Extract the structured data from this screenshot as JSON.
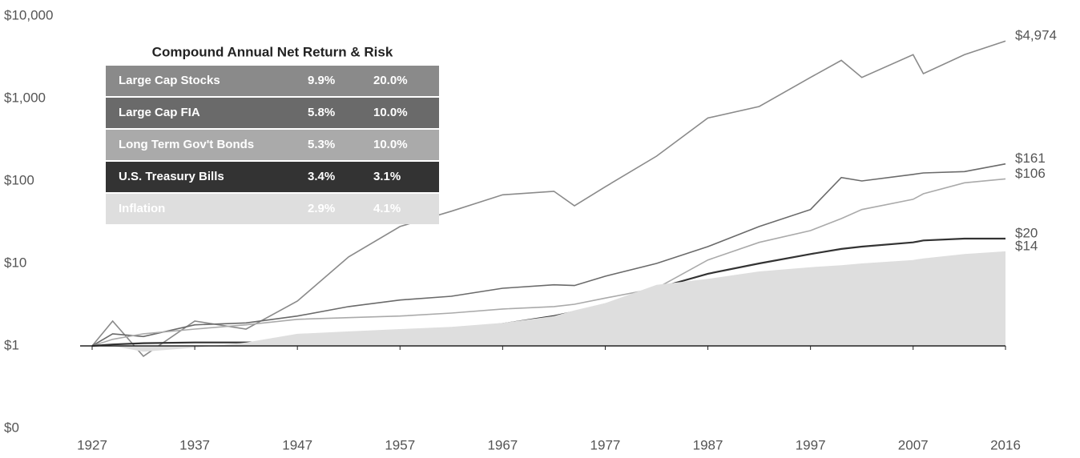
{
  "chart_data": {
    "type": "line",
    "log_scale": true,
    "grid": false,
    "x_axis_at": 1,
    "xlim": [
      1927,
      2016
    ],
    "xticks": [
      1927,
      1937,
      1947,
      1957,
      1967,
      1977,
      1987,
      1997,
      2007,
      2016
    ],
    "ylim": [
      0.1,
      10000
    ],
    "yticks": [
      {
        "value": 0.1,
        "label": "$0"
      },
      {
        "value": 1,
        "label": "$1"
      },
      {
        "value": 10,
        "label": "$10"
      },
      {
        "value": 100,
        "label": "$100"
      },
      {
        "value": 1000,
        "label": "$1,000"
      },
      {
        "value": 10000,
        "label": "$10,000"
      }
    ],
    "x": [
      1927,
      1929,
      1932,
      1937,
      1942,
      1947,
      1952,
      1957,
      1962,
      1967,
      1972,
      1974,
      1977,
      1982,
      1987,
      1992,
      1997,
      2000,
      2002,
      2007,
      2008,
      2012,
      2016
    ],
    "series": [
      {
        "name": "Large Cap Stocks",
        "color": "#8a8a8a",
        "area": false,
        "values": [
          1,
          2,
          0.75,
          2,
          1.6,
          3.5,
          12,
          28,
          43,
          68,
          75,
          50,
          85,
          200,
          580,
          800,
          1800,
          2900,
          1800,
          3400,
          2000,
          3400,
          4974
        ],
        "value_labels": [
          null,
          null,
          null,
          null,
          null,
          null,
          null,
          null,
          null,
          null,
          null,
          null,
          null,
          null,
          null,
          null,
          null,
          null,
          null,
          null,
          null,
          null,
          "$4,974"
        ]
      },
      {
        "name": "Large Cap FIA",
        "color": "#6a6a6a",
        "area": false,
        "values": [
          1,
          1.4,
          1.3,
          1.8,
          1.9,
          2.3,
          3,
          3.6,
          4,
          5,
          5.5,
          5.4,
          7,
          10,
          16,
          28,
          45,
          110,
          100,
          120,
          125,
          130,
          161
        ],
        "value_labels": [
          null,
          null,
          null,
          null,
          null,
          null,
          null,
          null,
          null,
          null,
          null,
          null,
          null,
          null,
          null,
          null,
          null,
          null,
          null,
          null,
          null,
          null,
          "$161"
        ]
      },
      {
        "name": "Long Term Gov't Bonds",
        "color": "#aaaaaa",
        "area": false,
        "values": [
          1,
          1.2,
          1.4,
          1.6,
          1.8,
          2.1,
          2.2,
          2.3,
          2.5,
          2.8,
          3,
          3.2,
          3.8,
          5,
          11,
          18,
          25,
          35,
          45,
          60,
          70,
          95,
          106
        ],
        "value_labels": [
          null,
          null,
          null,
          null,
          null,
          null,
          null,
          null,
          null,
          null,
          null,
          null,
          null,
          null,
          null,
          null,
          null,
          null,
          null,
          null,
          null,
          null,
          "$106"
        ]
      },
      {
        "name": "U.S. Treasury Bills",
        "color": "#333333",
        "area": false,
        "values": [
          1,
          1.04,
          1.08,
          1.1,
          1.1,
          1.12,
          1.2,
          1.35,
          1.55,
          1.85,
          2.3,
          2.6,
          3.2,
          5,
          7.5,
          10,
          13,
          15,
          16,
          18,
          19,
          20,
          20
        ],
        "value_labels": [
          null,
          null,
          null,
          null,
          null,
          null,
          null,
          null,
          null,
          null,
          null,
          null,
          null,
          null,
          null,
          null,
          null,
          null,
          null,
          null,
          null,
          null,
          "$20"
        ]
      },
      {
        "name": "Inflation",
        "color": "#dedede",
        "area": true,
        "values": [
          1,
          1,
          0.85,
          0.95,
          1.1,
          1.4,
          1.5,
          1.6,
          1.7,
          1.9,
          2.3,
          2.7,
          3.3,
          5.5,
          6.5,
          8,
          9,
          9.5,
          10,
          11,
          11.5,
          13,
          14
        ],
        "value_labels": [
          null,
          null,
          null,
          null,
          null,
          null,
          null,
          null,
          null,
          null,
          null,
          null,
          null,
          null,
          null,
          null,
          null,
          null,
          null,
          null,
          null,
          null,
          "$14"
        ]
      }
    ],
    "legend_table": {
      "title": "Compound Annual Net Return & Risk",
      "rows": [
        [
          "9.9%",
          "20.0%"
        ],
        [
          "5.8%",
          "10.0%"
        ],
        [
          "5.3%",
          "10.0%"
        ],
        [
          "3.4%",
          "3.1%"
        ],
        [
          "2.9%",
          "4.1%"
        ]
      ]
    }
  }
}
